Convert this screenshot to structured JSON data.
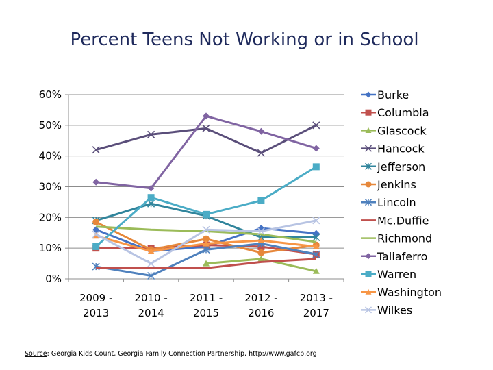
{
  "chart_data": {
    "type": "line",
    "title": "Percent Teens Not Working or in School",
    "categories": [
      "2009 - 2013",
      "2010 - 2014",
      "2011 - 2015",
      "2012 - 2016",
      "2013 - 2017"
    ],
    "ylim": [
      0,
      60
    ],
    "yticks": [
      "0%",
      "10%",
      "20%",
      "30%",
      "40%",
      "50%",
      "60%"
    ],
    "ytick_values": [
      0,
      10,
      20,
      30,
      40,
      50,
      60
    ],
    "grid": true,
    "legend_position": "right",
    "series": [
      {
        "name": "Burke",
        "color": "#4472c4",
        "marker": "diamond",
        "values": [
          16,
          9,
          10.5,
          16.5,
          14.8
        ]
      },
      {
        "name": "Columbia",
        "color": "#c0504d",
        "marker": "square",
        "values": [
          10,
          10,
          11,
          10.5,
          8
        ]
      },
      {
        "name": "Glascock",
        "color": "#9bbb59",
        "marker": "triangle",
        "values": [
          null,
          null,
          5,
          6.5,
          2.5
        ]
      },
      {
        "name": "Hancock",
        "color": "#5a4e7a",
        "marker": "x",
        "values": [
          42,
          47,
          49,
          41,
          50
        ]
      },
      {
        "name": "Jefferson",
        "color": "#31859c",
        "marker": "star",
        "values": [
          19,
          24.5,
          20.5,
          13.5,
          13.5
        ]
      },
      {
        "name": "Jenkins",
        "color": "#e6873a",
        "marker": "circle",
        "values": [
          18.5,
          9.5,
          13,
          8.5,
          11
        ]
      },
      {
        "name": "Lincoln",
        "color": "#4f81bd",
        "marker": "star",
        "values": [
          4,
          1,
          9.5,
          11.5,
          8
        ]
      },
      {
        "name": "Mc.Duffie",
        "color": "#c0504d",
        "marker": "none",
        "values": [
          3.5,
          3.5,
          3.5,
          5.5,
          6.5
        ]
      },
      {
        "name": "Richmond",
        "color": "#9bbb59",
        "marker": "none",
        "values": [
          17,
          16,
          15.5,
          14.5,
          12
        ]
      },
      {
        "name": "Taliaferro",
        "color": "#8064a2",
        "marker": "diamond",
        "values": [
          31.5,
          29.5,
          53,
          48,
          42.5
        ]
      },
      {
        "name": "Warren",
        "color": "#4bacc6",
        "marker": "square",
        "values": [
          10.5,
          26.5,
          21,
          25.5,
          36.5
        ]
      },
      {
        "name": "Washington",
        "color": "#f79646",
        "marker": "triangle",
        "values": [
          14,
          9,
          11.5,
          12.5,
          10.5
        ]
      },
      {
        "name": "Wilkes",
        "color": "#b8c4e3",
        "marker": "x",
        "values": [
          14.5,
          5,
          16,
          15.5,
          19
        ]
      }
    ]
  },
  "source": {
    "label": "Source",
    "text": ": Georgia Kids Count, Georgia Family Connection Partnership, http://www.gafcp.org"
  }
}
